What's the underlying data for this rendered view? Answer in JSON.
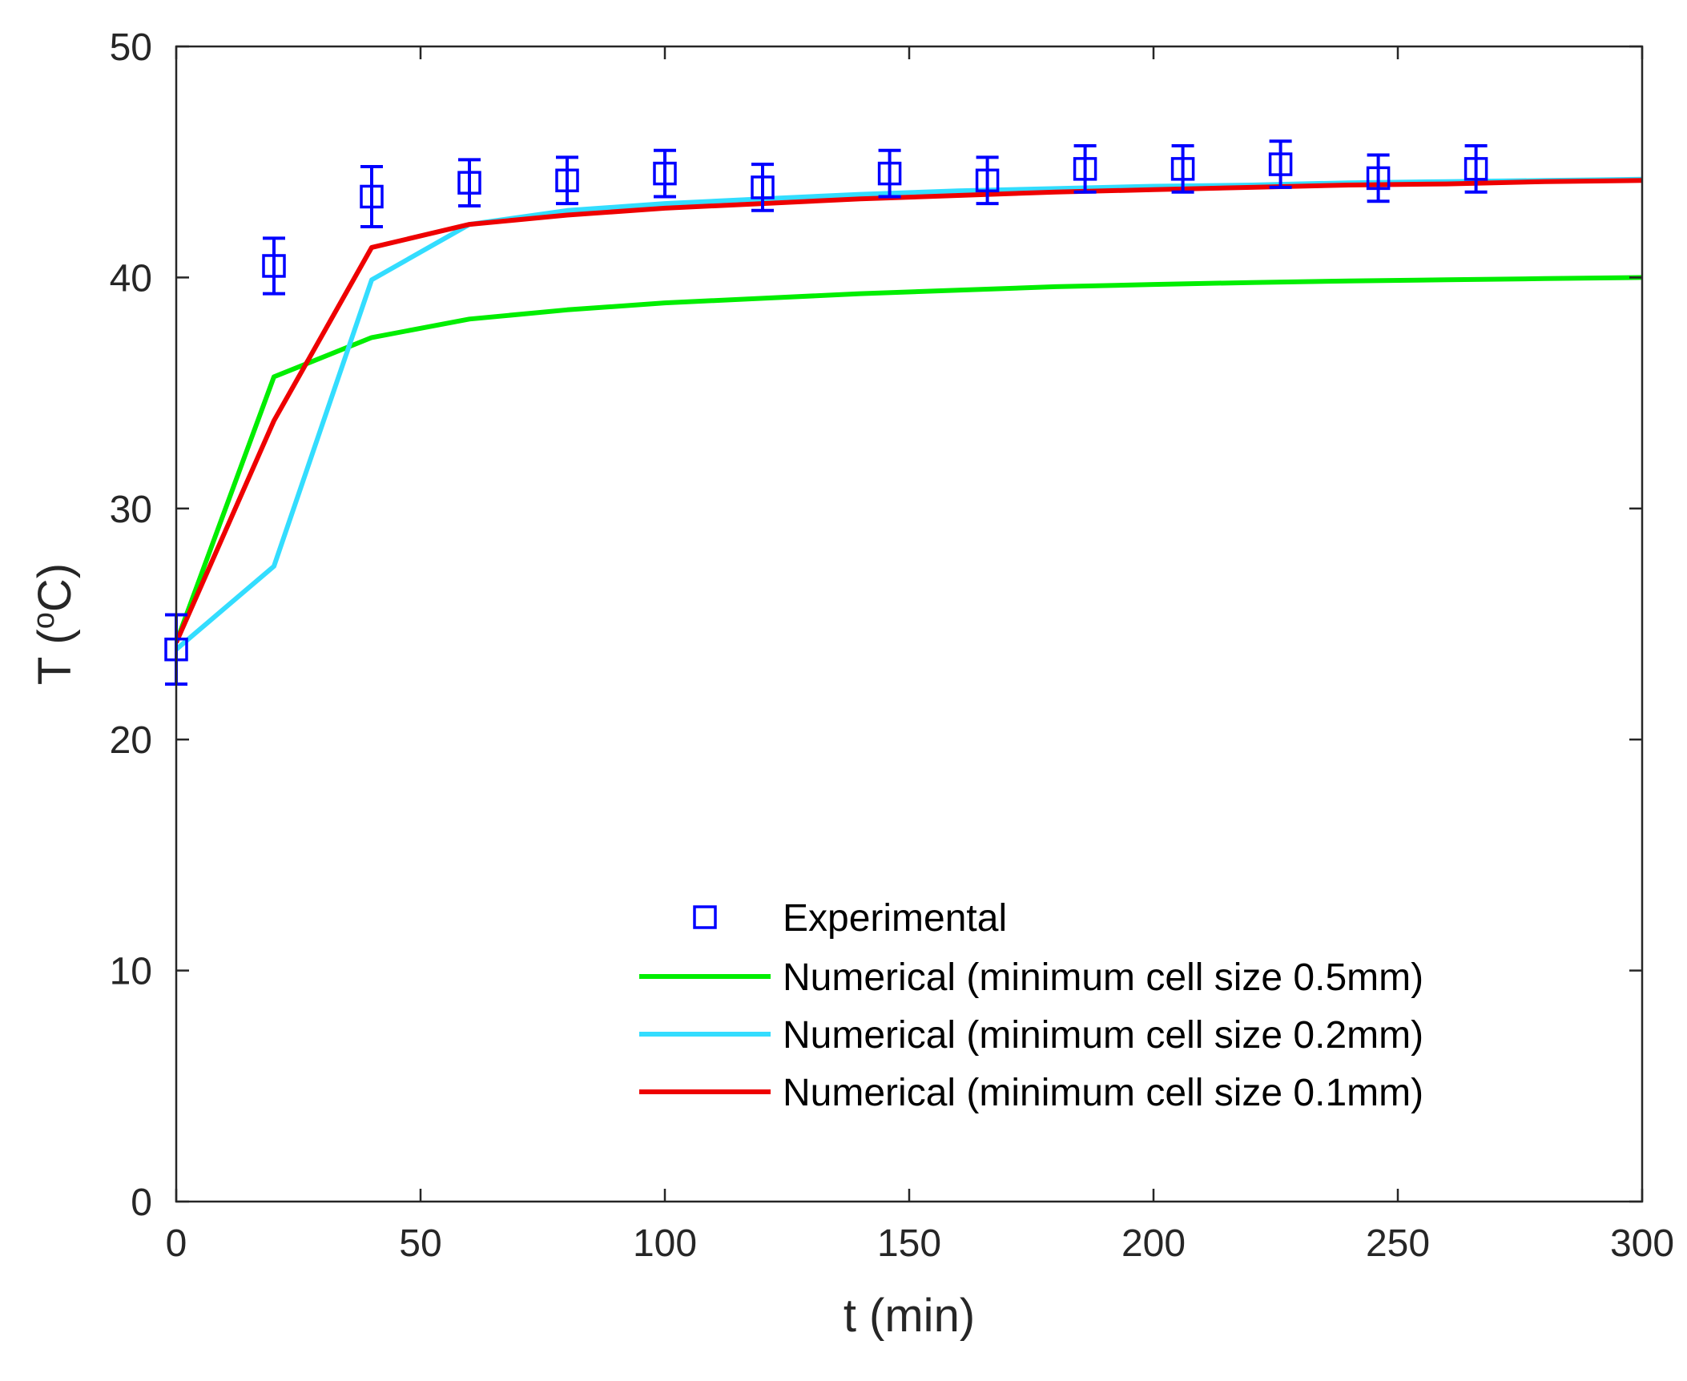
{
  "chart_data": {
    "type": "line",
    "title": "",
    "xlabel": "t (min)",
    "ylabel": "T (oC)",
    "ylabel_parts": {
      "prefix": "T (",
      "sup": "o",
      "suffix": "C)"
    },
    "xlim": [
      0,
      300
    ],
    "ylim": [
      0,
      50
    ],
    "xticks": [
      0,
      50,
      100,
      150,
      200,
      250,
      300
    ],
    "yticks": [
      0,
      10,
      20,
      30,
      40,
      50
    ],
    "grid": false,
    "legend_position": "bottom-right",
    "experimental": {
      "name": "Experimental",
      "color": "#0000ff",
      "marker": "square",
      "x": [
        0,
        20,
        40,
        60,
        80,
        100,
        120,
        146,
        166,
        186,
        206,
        226,
        246,
        266
      ],
      "y": [
        23.9,
        40.5,
        43.5,
        44.1,
        44.2,
        44.5,
        43.9,
        44.5,
        44.2,
        44.7,
        44.7,
        44.9,
        44.3,
        44.7
      ],
      "err": [
        1.5,
        1.2,
        1.3,
        1.0,
        1.0,
        1.0,
        1.0,
        1.0,
        1.0,
        1.0,
        1.0,
        1.0,
        1.0,
        1.0
      ]
    },
    "series": [
      {
        "name": "Numerical (minimum cell size 0.5mm)",
        "color": "#00ee00",
        "x": [
          0,
          20,
          40,
          60,
          80,
          100,
          120,
          140,
          160,
          180,
          200,
          220,
          240,
          260,
          280,
          300
        ],
        "y": [
          24.2,
          35.7,
          37.4,
          38.2,
          38.6,
          38.9,
          39.1,
          39.3,
          39.45,
          39.6,
          39.7,
          39.78,
          39.85,
          39.9,
          39.95,
          40.0
        ]
      },
      {
        "name": "Numerical (minimum cell size 0.2mm)",
        "color": "#33ddff",
        "x": [
          0,
          20,
          40,
          60,
          80,
          100,
          120,
          140,
          160,
          180,
          200,
          220,
          240,
          260,
          280,
          300
        ],
        "y": [
          23.9,
          27.5,
          39.9,
          42.3,
          42.9,
          43.2,
          43.4,
          43.6,
          43.75,
          43.85,
          43.95,
          44.0,
          44.1,
          44.15,
          44.2,
          44.25
        ]
      },
      {
        "name": "Numerical (minimum cell size 0.1mm)",
        "color": "#ee0000",
        "x": [
          0,
          20,
          40,
          60,
          80,
          100,
          120,
          140,
          160,
          180,
          200,
          220,
          240,
          260,
          280,
          300
        ],
        "y": [
          24.2,
          33.8,
          41.3,
          42.3,
          42.7,
          43.0,
          43.2,
          43.4,
          43.55,
          43.7,
          43.8,
          43.9,
          44.0,
          44.05,
          44.15,
          44.2
        ]
      }
    ]
  }
}
